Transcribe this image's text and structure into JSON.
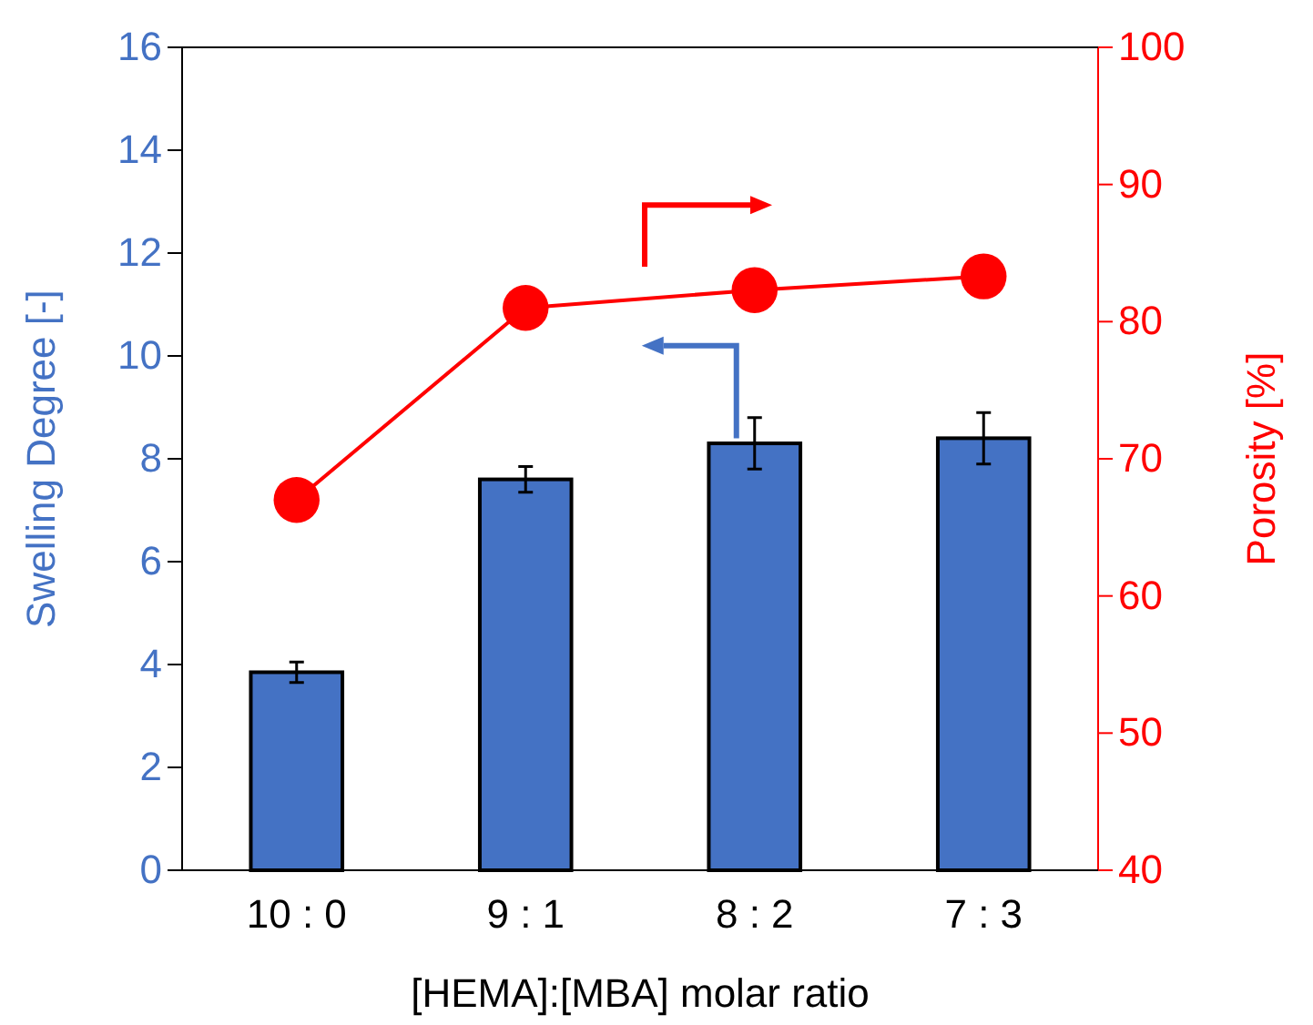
{
  "chart_data": {
    "type": "bar",
    "xlabel": "[HEMA]:[MBA] molar ratio",
    "ylabel": "Swelling Degree [-]",
    "y2label": "Porosity [%]",
    "categories": [
      "10 : 0",
      "9 : 1",
      "8 : 2",
      "7 : 3"
    ],
    "series": [
      {
        "color": "#4472c4",
        "values": [
          3.85,
          7.6,
          8.3,
          8.4
        ],
        "errors": [
          0.2,
          0.25,
          0.5,
          0.5
        ]
      },
      {
        "type": "line",
        "axis": "y2",
        "color": "#ff0000",
        "values": [
          67,
          81,
          82.3,
          83.3
        ]
      }
    ],
    "marker": "circle",
    "line_style": "solid",
    "ylim": [
      0,
      16
    ],
    "yticks": [
      0,
      2,
      4,
      6,
      8,
      10,
      12,
      14,
      16
    ],
    "y2lim": [
      40,
      100
    ],
    "y2ticks": [
      40,
      50,
      60,
      70,
      80,
      90,
      100
    ]
  }
}
